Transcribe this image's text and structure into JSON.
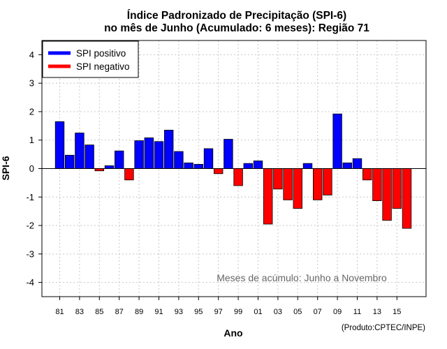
{
  "chart_data": {
    "type": "bar",
    "title": "Índice Padronizado de Precipitação (SPI-6)",
    "subtitle": "no mês de Junho (Acumulado: 6 meses): Região 71",
    "xlabel": "Ano",
    "ylabel": "SPI-6",
    "ylim": [
      -4.5,
      4.5
    ],
    "yticks": [
      -4,
      -3,
      -2,
      -1,
      0,
      1,
      2,
      3,
      4
    ],
    "grid": true,
    "years": [
      "81",
      "82",
      "83",
      "84",
      "85",
      "86",
      "87",
      "88",
      "89",
      "90",
      "91",
      "92",
      "93",
      "94",
      "95",
      "96",
      "97",
      "98",
      "99",
      "00",
      "01",
      "02",
      "03",
      "04",
      "05",
      "06",
      "07",
      "08",
      "09",
      "10",
      "11",
      "12",
      "13",
      "14",
      "15",
      "16"
    ],
    "xtick_labels": [
      "81",
      "83",
      "85",
      "87",
      "89",
      "91",
      "93",
      "95",
      "97",
      "99",
      "01",
      "03",
      "05",
      "07",
      "09",
      "11",
      "13",
      "15"
    ],
    "values": [
      1.65,
      0.47,
      1.25,
      0.83,
      -0.08,
      0.1,
      0.62,
      -0.4,
      0.98,
      1.08,
      0.95,
      1.35,
      0.6,
      0.2,
      0.15,
      0.7,
      -0.18,
      1.03,
      -0.6,
      0.18,
      0.27,
      -1.95,
      -0.72,
      -1.1,
      -1.4,
      0.18,
      -1.1,
      -0.93,
      1.92,
      0.2,
      0.35,
      -0.4,
      -1.13,
      -1.82,
      -1.4,
      -2.1
    ],
    "legend": {
      "position": "top-left",
      "entries": [
        {
          "label": "SPI positivo",
          "color": "#0000ff"
        },
        {
          "label": "SPI negativo",
          "color": "#ff0000"
        }
      ]
    },
    "annotation": "Meses de acúmulo: Junho a Novembro",
    "credit": "(Produto:CPTEC/INPE)"
  }
}
